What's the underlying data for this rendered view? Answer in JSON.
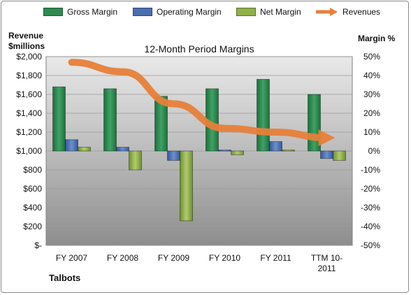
{
  "chart_data": {
    "type": "bar",
    "title": "12-Month Period Margins",
    "company": "Talbots",
    "y_left_label": [
      "Revenue",
      "$millions"
    ],
    "y_right_label": "Margin %",
    "categories": [
      [
        "FY 2007"
      ],
      [
        "FY 2008"
      ],
      [
        "FY 2009"
      ],
      [
        "FY 2010"
      ],
      [
        "FY 2011"
      ],
      [
        "TTM 10-",
        "2011"
      ]
    ],
    "y_left_ticks": [
      "$-",
      "$200",
      "$400",
      "$600",
      "$800",
      "$1,000",
      "$1,200",
      "$1,400",
      "$1,600",
      "$1,800",
      "$2,000"
    ],
    "y_right_ticks": [
      "-50%",
      "-40%",
      "-30%",
      "-20%",
      "-10%",
      "0%",
      "10%",
      "20%",
      "30%",
      "40%",
      "50%"
    ],
    "ylim_left": [
      0,
      2000
    ],
    "ylim_right": [
      -50,
      50
    ],
    "series": [
      {
        "name": "Gross Margin",
        "kind": "bar",
        "axis": "right",
        "color": "#2e8b4f",
        "values": [
          34,
          33,
          29,
          33,
          38,
          30
        ]
      },
      {
        "name": "Operating Margin",
        "kind": "bar",
        "axis": "right",
        "color": "#4a6fb0",
        "values": [
          6,
          2,
          -5,
          0.5,
          5,
          -4
        ]
      },
      {
        "name": "Net Margin",
        "kind": "bar",
        "axis": "right",
        "color": "#8fb04a",
        "values": [
          2,
          -10,
          -37,
          -2,
          0.5,
          -5
        ]
      },
      {
        "name": "Revenues",
        "kind": "line",
        "axis": "left",
        "color": "#e8803a",
        "values": [
          1940,
          1840,
          1500,
          1240,
          1200,
          1140
        ]
      }
    ]
  }
}
